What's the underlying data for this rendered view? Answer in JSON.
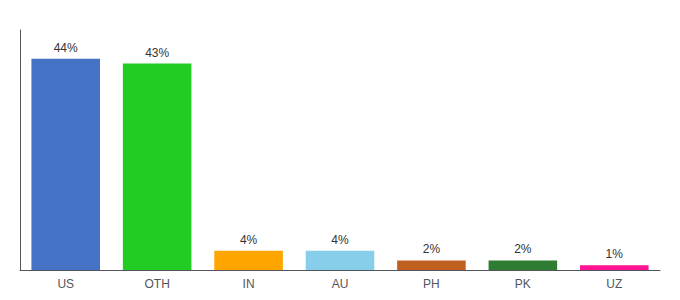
{
  "chart_data": {
    "type": "bar",
    "categories": [
      "US",
      "OTH",
      "IN",
      "AU",
      "PH",
      "PK",
      "UZ"
    ],
    "values": [
      44,
      43,
      4,
      4,
      2,
      2,
      1
    ],
    "value_labels": [
      "44%",
      "43%",
      "4%",
      "4%",
      "2%",
      "2%",
      "1%"
    ],
    "colors": [
      "#4472C4",
      "#22CC22",
      "#FFA500",
      "#87CEEB",
      "#C06020",
      "#2E7D32",
      "#FF1493"
    ],
    "ylim": [
      0,
      50
    ],
    "grid": false,
    "data_labels": true,
    "tick_labels": "x"
  }
}
